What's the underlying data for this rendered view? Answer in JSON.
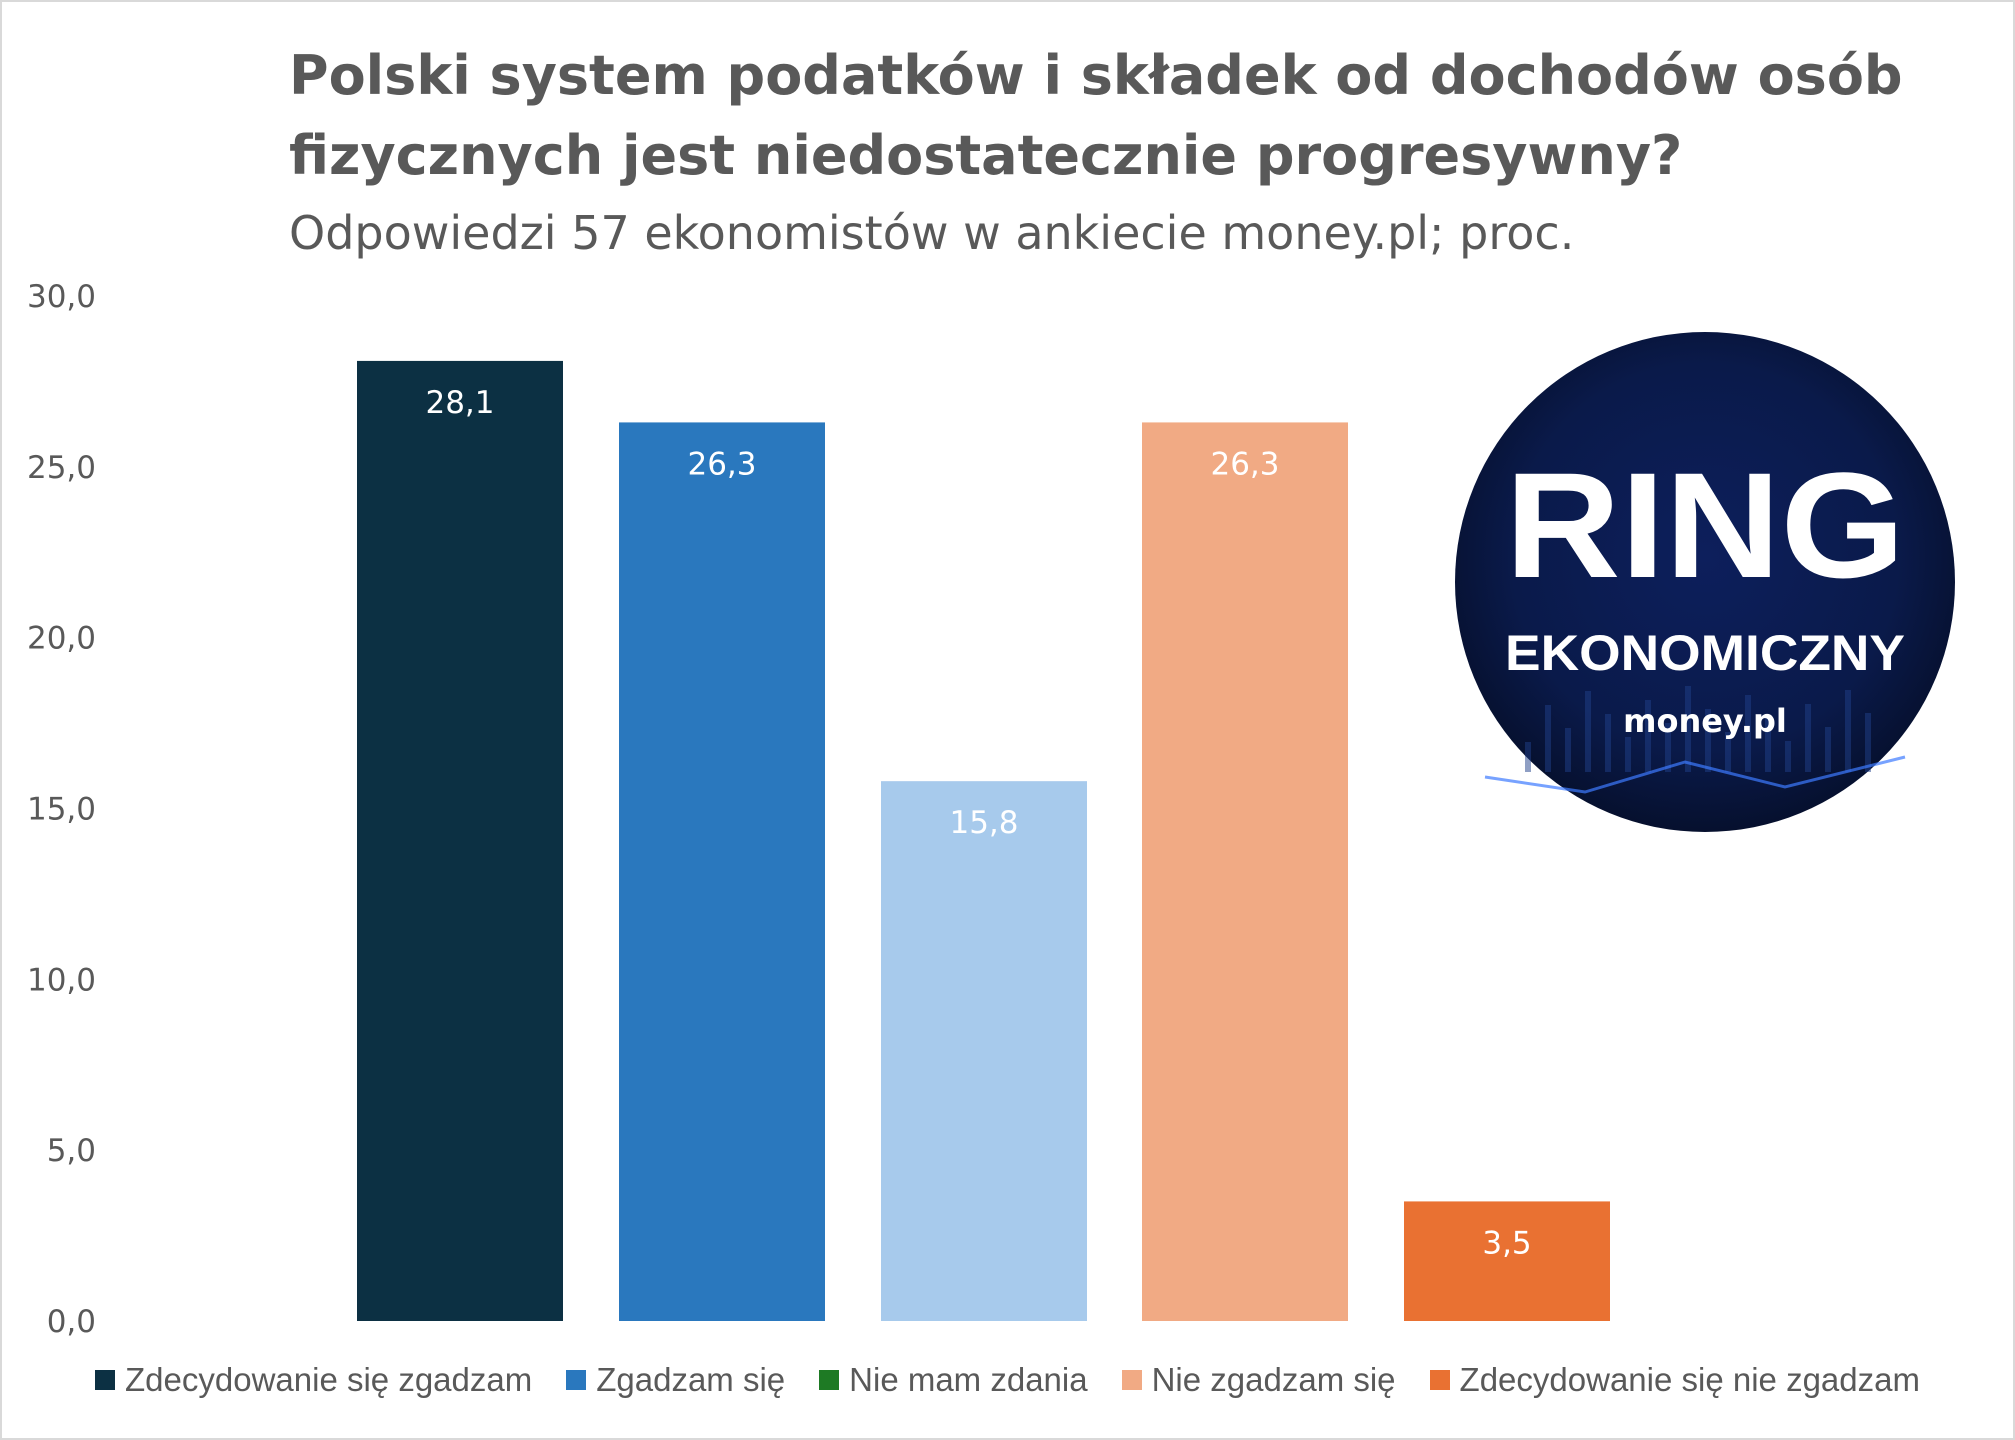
{
  "chart_data": {
    "type": "bar",
    "title": "Polski system podatków i składek od dochodów osób fizycznych jest niedostatecznie progresywny?",
    "title_lines": [
      "Polski system podatków i składek od dochodów osób",
      "fizycznych jest niedostatecznie progresywny?"
    ],
    "subtitle": "Odpowiedzi 57 ekonomistów w ankiecie money.pl; proc.",
    "categories": [
      "Zdecydowanie się zgadzam",
      "Zgadzam się",
      "Nie mam zdania",
      "Nie zgadzam się",
      "Zdecydowanie się nie zgadzam"
    ],
    "values": [
      28.1,
      26.3,
      15.8,
      26.3,
      3.5
    ],
    "data_labels": [
      "28,1",
      "26,3",
      "15,8",
      "26,3",
      "3,5"
    ],
    "bar_colors": [
      "#0c3043",
      "#2a78be",
      "#a7caec",
      "#f1aa84",
      "#e97132"
    ],
    "legend_colors": [
      "#0c3043",
      "#2a78be",
      "#1e7a24",
      "#f1aa84",
      "#e97132"
    ],
    "ylim": [
      0,
      30
    ],
    "yticks": [
      "0,0",
      "5,0",
      "10,0",
      "15,0",
      "20,0",
      "25,0",
      "30,0"
    ],
    "ytick_values": [
      0,
      5,
      10,
      15,
      20,
      25,
      30
    ],
    "grid": false,
    "legend_position": "bottom"
  },
  "logo": {
    "line1": "RING",
    "line2": "EKONOMICZNY",
    "line3": "money.pl"
  }
}
